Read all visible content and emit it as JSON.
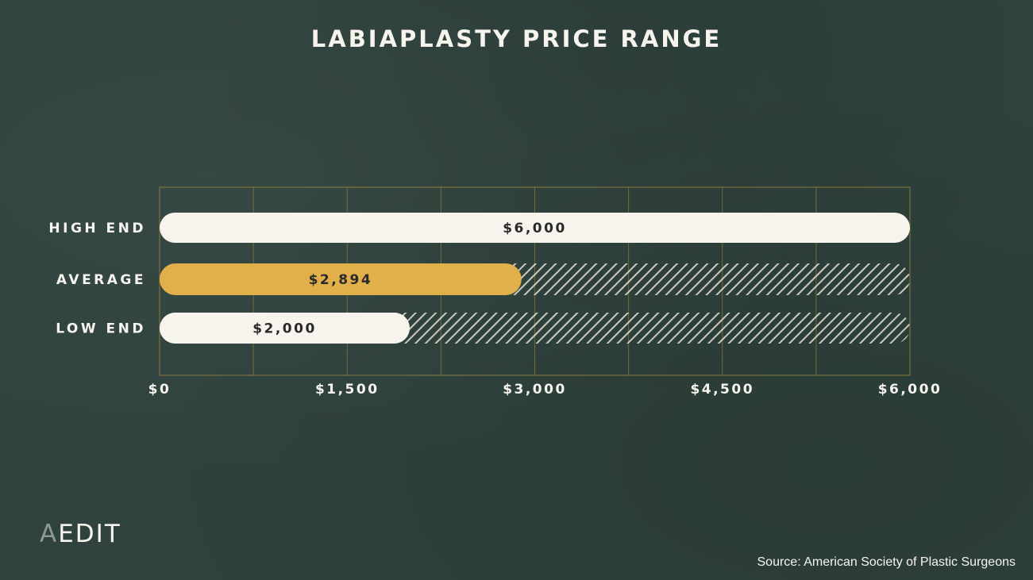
{
  "chart_data": {
    "type": "bar",
    "orientation": "horizontal",
    "title": "LABIAPLASTY PRICE RANGE",
    "categories": [
      "HIGH END",
      "AVERAGE",
      "LOW END"
    ],
    "values": [
      6000,
      2894,
      2000
    ],
    "value_labels": [
      "$6,000",
      "$2,894",
      "$2,000"
    ],
    "bar_colors": [
      "#f7f4ee",
      "#e2b04a",
      "#f7f4ee"
    ],
    "xlim": [
      0,
      6000
    ],
    "x_ticks": [
      0,
      1500,
      3000,
      4500,
      6000
    ],
    "x_tick_labels": [
      "$0",
      "$1,500",
      "$3,000",
      "$4,500",
      "$6,000"
    ],
    "xlabel": "",
    "ylabel": "",
    "grid": true,
    "remainder_hatched": true
  },
  "logo": {
    "first": "A",
    "rest": "EDIT"
  },
  "source": "Source: American Society of Plastic Surgeons",
  "colors": {
    "background": "#2f423d",
    "text": "#f7f4ee",
    "accent": "#e2b04a",
    "grid": "#8a7a3c",
    "hatch": "#e6e2d9",
    "bar_text": "#2a2a28"
  }
}
